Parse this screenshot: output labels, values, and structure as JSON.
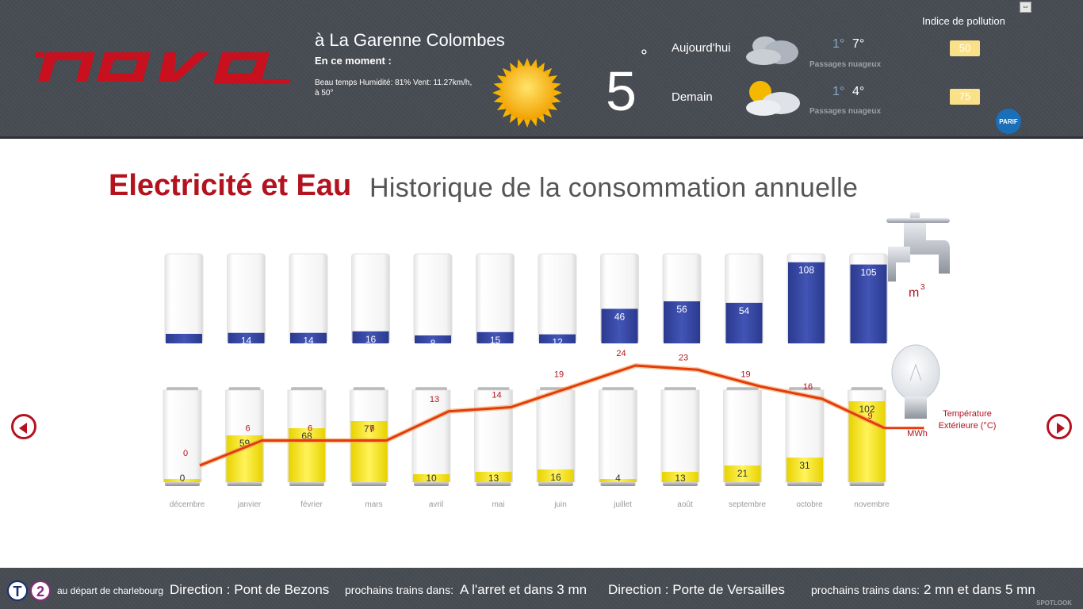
{
  "header": {
    "logo_text": "nova",
    "city": "à La Garenne Colombes",
    "now_label": "En ce moment :",
    "now_description": "Beau temps Humidité: 81% Vent: 11.27km/h, à 50°",
    "now_icon": "sun-icon",
    "current_temp": "5",
    "degree_symbol": "°",
    "forecast": [
      {
        "day": "Aujourd'hui",
        "min": "1°",
        "max": "7°",
        "condition": "Passages nuageux",
        "icon": "cloud-icon"
      },
      {
        "day": "Demain",
        "min": "1°",
        "max": "4°",
        "condition": "Passages nuageux",
        "icon": "sun-cloud-icon"
      }
    ],
    "pollution": {
      "title": "Indice de pollution",
      "today": "50",
      "tomorrow": "75",
      "logo_text": "PARIF",
      "badge_color": "#fbe08a"
    },
    "expand_icon": "⇔"
  },
  "page": {
    "title_main": "Electricité et Eau",
    "title_sub": "Historique de la consommation annuelle",
    "accent": "#b3131f"
  },
  "chart_data": {
    "type": "bar",
    "categories": [
      "décembre",
      "janvier",
      "février",
      "mars",
      "avril",
      "mai",
      "juin",
      "juillet",
      "août",
      "septembre",
      "octobre",
      "novembre"
    ],
    "series": [
      {
        "unit": "m",
        "unit_sup": "3",
        "values": [
          null,
          14,
          14,
          16,
          8,
          15,
          12,
          46,
          56,
          54,
          108,
          105
        ],
        "color": "#3a4aa0"
      },
      {
        "unit": "MWh",
        "values": [
          0,
          59,
          68,
          77,
          10,
          13,
          16,
          4,
          13,
          21,
          31,
          102
        ],
        "color": "#f0e020"
      },
      {
        "name": "Température Extérieure (°C)",
        "values": [
          0,
          6,
          6,
          6,
          13,
          14,
          19,
          24,
          23,
          19,
          16,
          9
        ],
        "color": "#e33b0c",
        "type": "line"
      }
    ]
  },
  "footer": {
    "line_badge": "T",
    "line_number": "2",
    "departure": "au départ de charlebourg",
    "direction1_label": "Direction : Pont de Bezons",
    "next_label1": "prochains trains dans:",
    "next_value1": "A l'arret et dans 3 mn",
    "direction2_label": "Direction : Porte de Versailles",
    "next_label2": "prochains trains dans:",
    "next_value2": "2 mn et dans 5 mn",
    "brand": "SPOTLOOK"
  }
}
